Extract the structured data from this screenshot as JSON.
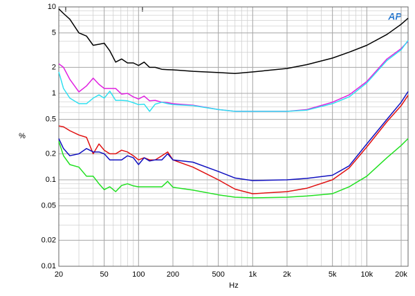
{
  "chart_data": {
    "type": "line",
    "xlabel": "Hz",
    "ylabel": "%",
    "annotations": [
      "T",
      "T"
    ],
    "logo": "AP",
    "xscale": "log",
    "yscale": "log",
    "grid": true,
    "xlim": [
      20,
      23000
    ],
    "ylim": [
      0.01,
      10
    ],
    "xticks": [
      20,
      50,
      100,
      200,
      500,
      {
        "value": 1000,
        "label": "1k"
      },
      {
        "value": 2000,
        "label": "2k"
      },
      {
        "value": 5000,
        "label": "5k"
      },
      {
        "value": 10000,
        "label": "10k"
      },
      {
        "value": 20000,
        "label": "20k"
      }
    ],
    "yticks": [
      10,
      5,
      2,
      1,
      0.5,
      0.2,
      0.1,
      0.05,
      0.02,
      0.01
    ],
    "x": [
      20,
      22,
      25,
      30,
      35,
      40,
      45,
      50,
      56,
      63,
      71,
      80,
      90,
      100,
      112,
      125,
      140,
      160,
      180,
      200,
      300,
      500,
      700,
      1000,
      2000,
      3000,
      5000,
      7000,
      10000,
      15000,
      20000,
      23000
    ],
    "series": [
      {
        "color": "#000000",
        "values": [
          9.5,
          8.4,
          7.2,
          5.0,
          4.6,
          3.6,
          3.7,
          3.8,
          3.1,
          2.3,
          2.5,
          2.25,
          2.25,
          2.1,
          2.3,
          2.0,
          2.0,
          1.9,
          1.88,
          1.87,
          1.8,
          1.74,
          1.7,
          1.77,
          1.94,
          2.15,
          2.56,
          3.0,
          3.6,
          4.8,
          6.3,
          7.4
        ]
      },
      {
        "color": "#e020e0",
        "values": [
          2.2,
          2.0,
          1.45,
          1.04,
          1.22,
          1.5,
          1.27,
          1.14,
          1.14,
          1.14,
          0.98,
          1.0,
          0.91,
          0.86,
          0.93,
          0.82,
          0.83,
          0.79,
          0.78,
          0.76,
          0.73,
          0.65,
          0.62,
          0.62,
          0.62,
          0.65,
          0.79,
          0.96,
          1.37,
          2.5,
          3.3,
          4.0
        ]
      },
      {
        "color": "#30e0f0",
        "values": [
          1.77,
          1.14,
          0.88,
          0.76,
          0.76,
          0.88,
          0.96,
          0.88,
          1.06,
          0.83,
          0.83,
          0.82,
          0.78,
          0.74,
          0.75,
          0.62,
          0.75,
          0.79,
          0.76,
          0.74,
          0.72,
          0.65,
          0.62,
          0.62,
          0.62,
          0.64,
          0.76,
          0.91,
          1.32,
          2.4,
          3.2,
          4.1
        ]
      },
      {
        "color": "#e01010",
        "values": [
          0.42,
          0.41,
          0.37,
          0.33,
          0.31,
          0.2,
          0.26,
          0.22,
          0.2,
          0.2,
          0.22,
          0.21,
          0.19,
          0.17,
          0.18,
          0.17,
          0.17,
          0.19,
          0.21,
          0.17,
          0.14,
          0.1,
          0.078,
          0.069,
          0.073,
          0.08,
          0.1,
          0.137,
          0.24,
          0.47,
          0.72,
          0.95
        ]
      },
      {
        "color": "#1010c0",
        "values": [
          0.3,
          0.23,
          0.19,
          0.2,
          0.23,
          0.21,
          0.21,
          0.2,
          0.17,
          0.17,
          0.17,
          0.19,
          0.18,
          0.15,
          0.18,
          0.165,
          0.17,
          0.17,
          0.2,
          0.17,
          0.16,
          0.125,
          0.105,
          0.098,
          0.1,
          0.104,
          0.113,
          0.145,
          0.26,
          0.5,
          0.79,
          1.05
        ]
      },
      {
        "color": "#20e020",
        "values": [
          0.28,
          0.19,
          0.15,
          0.14,
          0.11,
          0.11,
          0.09,
          0.077,
          0.083,
          0.073,
          0.086,
          0.09,
          0.085,
          0.083,
          0.083,
          0.083,
          0.083,
          0.083,
          0.096,
          0.082,
          0.076,
          0.067,
          0.063,
          0.062,
          0.063,
          0.065,
          0.069,
          0.083,
          0.11,
          0.18,
          0.25,
          0.3
        ]
      }
    ]
  }
}
